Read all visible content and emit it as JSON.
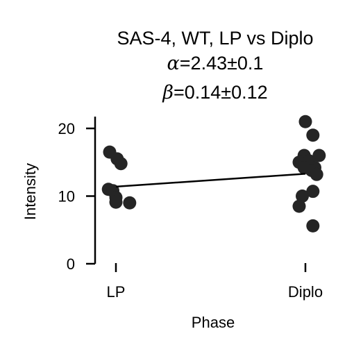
{
  "chart_data": {
    "type": "scatter",
    "title": "SAS-4, WT, LP vs Diplo",
    "alpha_label": "α",
    "alpha_value": "=2.43±0.1",
    "beta_label": "β",
    "beta_value": "=0.14±0.12",
    "xlabel": "Phase",
    "ylabel": "Intensity",
    "categories": [
      "LP",
      "Diplo"
    ],
    "ylim": [
      0,
      22
    ],
    "yticks": [
      0,
      10,
      20
    ],
    "series": [
      {
        "category": "LP",
        "points": [
          {
            "jitter": -0.1,
            "y": 16.5
          },
          {
            "jitter": 0.02,
            "y": 15.5
          },
          {
            "jitter": 0.08,
            "y": 14.8
          },
          {
            "jitter": -0.12,
            "y": 11.0
          },
          {
            "jitter": -0.05,
            "y": 10.8
          },
          {
            "jitter": 0.0,
            "y": 9.8
          },
          {
            "jitter": 0.0,
            "y": 9.1
          },
          {
            "jitter": 0.22,
            "y": 9.0
          }
        ]
      },
      {
        "category": "Diplo",
        "points": [
          {
            "jitter": 0.0,
            "y": 21.0
          },
          {
            "jitter": 0.12,
            "y": 19.0
          },
          {
            "jitter": -0.02,
            "y": 16.0
          },
          {
            "jitter": 0.22,
            "y": 16.0
          },
          {
            "jitter": 0.06,
            "y": 15.2
          },
          {
            "jitter": -0.1,
            "y": 15.0
          },
          {
            "jitter": -0.06,
            "y": 14.8
          },
          {
            "jitter": 0.15,
            "y": 14.2
          },
          {
            "jitter": -0.02,
            "y": 14.2
          },
          {
            "jitter": 0.1,
            "y": 13.8
          },
          {
            "jitter": 0.18,
            "y": 13.2
          },
          {
            "jitter": -0.05,
            "y": 10.0
          },
          {
            "jitter": 0.12,
            "y": 10.7
          },
          {
            "jitter": -0.1,
            "y": 8.5
          },
          {
            "jitter": 0.12,
            "y": 5.6
          }
        ]
      }
    ],
    "fit_line": {
      "y_start": 11.4,
      "y_end": 13.3
    },
    "point_color": "#252525",
    "line_color": "#000000",
    "grid": false
  }
}
